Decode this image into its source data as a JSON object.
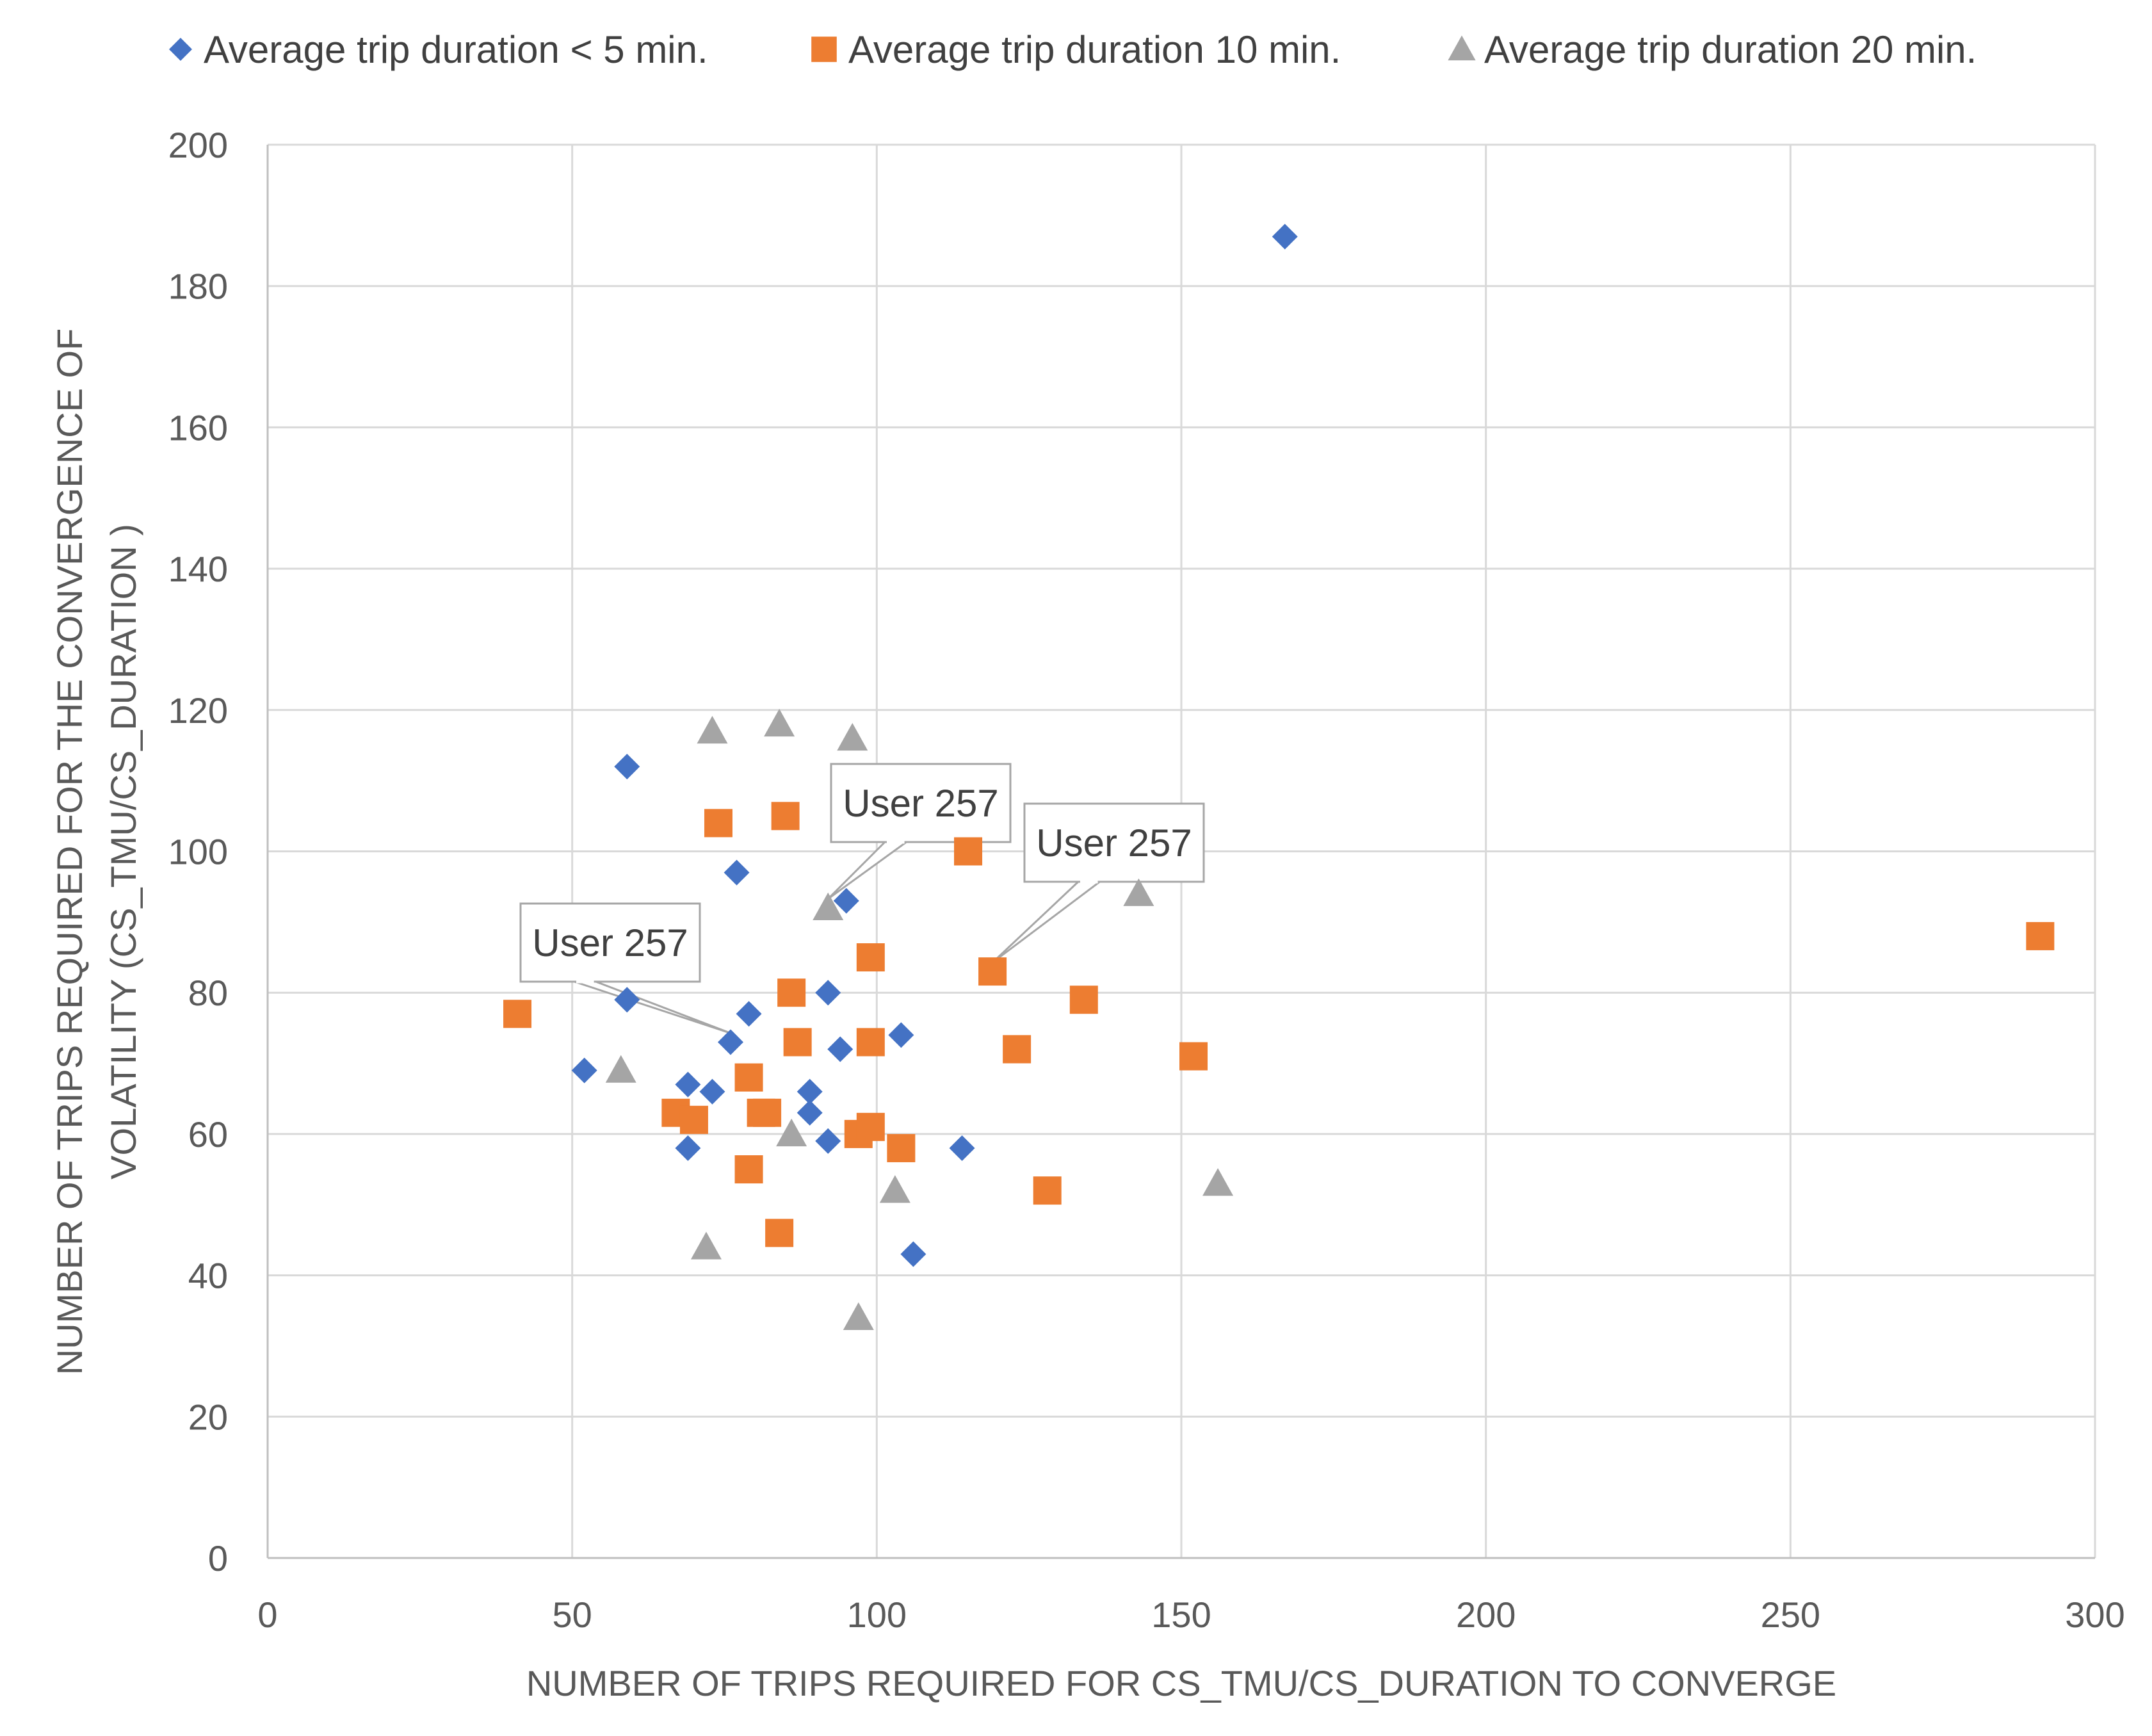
{
  "chart_data": {
    "type": "scatter",
    "title": "",
    "xlabel": "NUMBER OF TRIPS REQUIRED FOR CS_TMU/CS_DURATION TO CONVERGE",
    "ylabel_line1": "NUMBER OF TRIPS REQUIRED FOR THE CONVERGENCE OF",
    "ylabel_line2": "VOLATILITY (CS_TMU/CS_DURATION )",
    "xlim": [
      0,
      300
    ],
    "ylim": [
      0,
      200
    ],
    "x_ticks": [
      0,
      50,
      100,
      150,
      200,
      250,
      300
    ],
    "x_tick_labels": [
      "0",
      "50",
      "100",
      "150",
      "200",
      "250",
      "300"
    ],
    "y_ticks": [
      0,
      20,
      40,
      60,
      80,
      100,
      120,
      140,
      160,
      180,
      200
    ],
    "y_tick_labels": [
      "0",
      "20",
      "40",
      "60",
      "80",
      "100",
      "120",
      "140",
      "160",
      "180",
      "200"
    ],
    "grid": true,
    "legend_position": "top",
    "series": [
      {
        "name": "Average trip duration < 5 min.",
        "marker": "diamond",
        "color": "#4472C4",
        "points": [
          [
            59,
            112
          ],
          [
            77,
            97
          ],
          [
            95,
            93
          ],
          [
            59,
            79
          ],
          [
            79,
            77
          ],
          [
            92,
            80
          ],
          [
            104,
            74
          ],
          [
            76,
            73
          ],
          [
            94,
            72
          ],
          [
            52,
            69
          ],
          [
            69,
            67
          ],
          [
            73,
            66
          ],
          [
            89,
            66
          ],
          [
            89,
            63
          ],
          [
            69,
            58
          ],
          [
            92,
            59
          ],
          [
            114,
            58
          ],
          [
            106,
            43
          ],
          [
            167,
            187
          ]
        ]
      },
      {
        "name": "Average trip duration 10 min.",
        "marker": "square",
        "color": "#ED7D31",
        "points": [
          [
            74,
            104
          ],
          [
            85,
            105
          ],
          [
            115,
            100
          ],
          [
            41,
            77
          ],
          [
            99,
            85
          ],
          [
            86,
            80
          ],
          [
            119,
            83
          ],
          [
            87,
            73
          ],
          [
            99,
            73
          ],
          [
            134,
            79
          ],
          [
            123,
            72
          ],
          [
            152,
            71
          ],
          [
            79,
            68
          ],
          [
            67,
            63
          ],
          [
            70,
            62
          ],
          [
            81,
            63
          ],
          [
            82,
            63
          ],
          [
            97,
            60
          ],
          [
            99,
            61
          ],
          [
            104,
            58
          ],
          [
            79,
            55
          ],
          [
            128,
            52
          ],
          [
            84,
            46
          ],
          [
            291,
            88
          ]
        ]
      },
      {
        "name": "Average trip duration 20 min.",
        "marker": "triangle",
        "color": "#A5A5A5",
        "points": [
          [
            73,
            117
          ],
          [
            84,
            118
          ],
          [
            96,
            116
          ],
          [
            92,
            92
          ],
          [
            143,
            94
          ],
          [
            58,
            69
          ],
          [
            86,
            60
          ],
          [
            103,
            52
          ],
          [
            156,
            53
          ],
          [
            72,
            44
          ],
          [
            97,
            34
          ]
        ]
      }
    ],
    "annotations": [
      {
        "text": "User 257",
        "point": [
          76,
          73
        ]
      },
      {
        "text": "User 257",
        "point": [
          92,
          92
        ]
      },
      {
        "text": "User 257",
        "point": [
          119,
          83
        ]
      }
    ]
  }
}
